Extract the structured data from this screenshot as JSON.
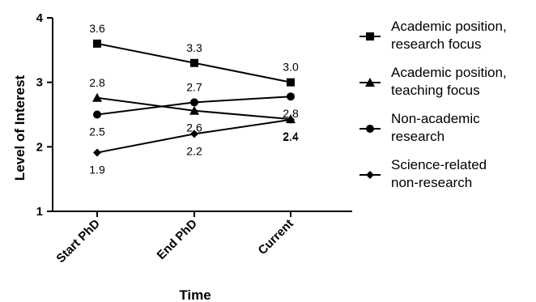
{
  "chart_data": {
    "type": "line",
    "xlabel": "Time",
    "ylabel": "Level of Interest",
    "categories": [
      "Start PhD",
      "End PhD",
      "Current"
    ],
    "ylim": [
      1,
      4
    ],
    "yticks": [
      1,
      2,
      3,
      4
    ],
    "grid": false,
    "legend_position": "right",
    "series": [
      {
        "name_lines": [
          "Academic position,",
          "research focus"
        ],
        "marker": "square",
        "values": [
          3.6,
          3.3,
          3.0
        ],
        "labels": [
          "3.6",
          "3.3",
          "3.0"
        ],
        "label_pos": [
          "above",
          "above",
          "above"
        ]
      },
      {
        "name_lines": [
          "Academic position,",
          "teaching focus"
        ],
        "marker": "triangle",
        "values": [
          2.76,
          2.56,
          2.43
        ],
        "labels": [
          "2.8",
          "2.6",
          "2.4"
        ],
        "label_pos": [
          "above",
          "below",
          "below"
        ]
      },
      {
        "name_lines": [
          "Non-academic",
          "research"
        ],
        "marker": "circle",
        "values": [
          2.5,
          2.69,
          2.78
        ],
        "labels": [
          "2.5",
          "2.7",
          "2.8"
        ],
        "label_pos": [
          "below",
          "above",
          "below"
        ]
      },
      {
        "name_lines": [
          "Science-related",
          "non-research"
        ],
        "marker": "diamond",
        "values": [
          1.91,
          2.2,
          2.42
        ],
        "labels": [
          "1.9",
          "2.2",
          "2.4"
        ],
        "label_pos": [
          "below",
          "below",
          "below"
        ]
      }
    ]
  }
}
